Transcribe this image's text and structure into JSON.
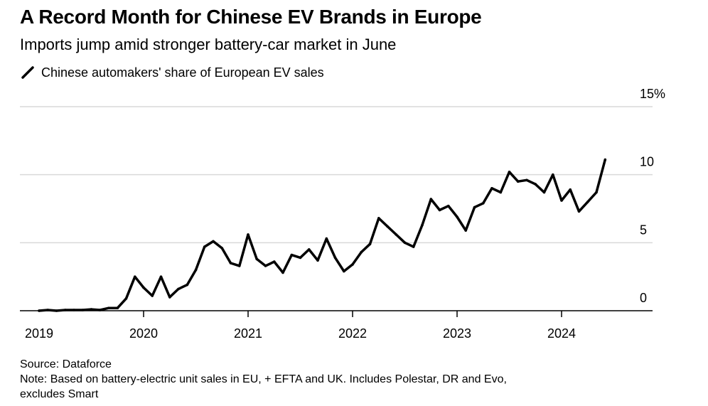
{
  "header": {
    "title": "A Record Month for Chinese EV Brands in Europe",
    "subtitle": "Imports jump amid stronger battery-car market in June"
  },
  "footer": {
    "source": "Source: Dataforce",
    "note_line1": "Note: Based on battery-electric unit sales in EU, + EFTA and UK. Includes Polestar, DR and Evo,",
    "note_line2": "excludes Smart"
  },
  "colors": {
    "line": "#000000",
    "grid": "#d9d9d9",
    "axis": "#000000"
  },
  "chart_data": {
    "type": "line",
    "title": "A Record Month for Chinese EV Brands in Europe",
    "subtitle": "Imports jump amid stronger battery-car market in June",
    "xlabel": "",
    "ylabel": "",
    "ylim": [
      0,
      15
    ],
    "xlim": [
      2019.0,
      2024.75
    ],
    "y_ticks": [
      0,
      5,
      10,
      15
    ],
    "y_tick_labels": [
      "0",
      "5",
      "10",
      "15%"
    ],
    "x_ticks": [
      2019,
      2020,
      2021,
      2022,
      2023,
      2024
    ],
    "x_tick_labels": [
      "2019",
      "2020",
      "2021",
      "2022",
      "2023",
      "2024"
    ],
    "grid": true,
    "series": [
      {
        "name": "Chinese automakers' share of European EV sales",
        "x": [
          2019.0,
          2019.0833,
          2019.1667,
          2019.25,
          2019.3333,
          2019.4167,
          2019.5,
          2019.5833,
          2019.6667,
          2019.75,
          2019.8333,
          2019.9167,
          2020.0,
          2020.0833,
          2020.1667,
          2020.25,
          2020.3333,
          2020.4167,
          2020.5,
          2020.5833,
          2020.6667,
          2020.75,
          2020.8333,
          2020.9167,
          2021.0,
          2021.0833,
          2021.1667,
          2021.25,
          2021.3333,
          2021.4167,
          2021.5,
          2021.5833,
          2021.6667,
          2021.75,
          2021.8333,
          2021.9167,
          2022.0,
          2022.0833,
          2022.1667,
          2022.25,
          2022.3333,
          2022.4167,
          2022.5,
          2022.5833,
          2022.6667,
          2022.75,
          2022.8333,
          2022.9167,
          2023.0,
          2023.0833,
          2023.1667,
          2023.25,
          2023.3333,
          2023.4167,
          2023.5,
          2023.5833,
          2023.6667,
          2023.75,
          2023.8333,
          2023.9167,
          2024.0,
          2024.0833,
          2024.1667,
          2024.25,
          2024.3333,
          2024.4167
        ],
        "values": [
          0.0,
          0.05,
          0.0,
          0.05,
          0.05,
          0.05,
          0.1,
          0.05,
          0.2,
          0.2,
          0.9,
          2.5,
          1.7,
          1.1,
          2.5,
          1.0,
          1.6,
          1.9,
          3.0,
          4.7,
          5.1,
          4.6,
          3.5,
          3.3,
          5.6,
          3.8,
          3.3,
          3.6,
          2.8,
          4.1,
          3.9,
          4.5,
          3.7,
          5.3,
          3.9,
          2.9,
          3.4,
          4.3,
          4.9,
          6.8,
          6.2,
          5.6,
          5.0,
          4.7,
          6.3,
          8.2,
          7.4,
          7.7,
          6.9,
          5.9,
          7.6,
          7.9,
          9.0,
          8.7,
          10.2,
          9.5,
          9.6,
          9.3,
          8.7,
          10.0,
          8.1,
          8.9,
          7.3,
          8.0,
          8.7,
          11.1
        ]
      }
    ]
  }
}
